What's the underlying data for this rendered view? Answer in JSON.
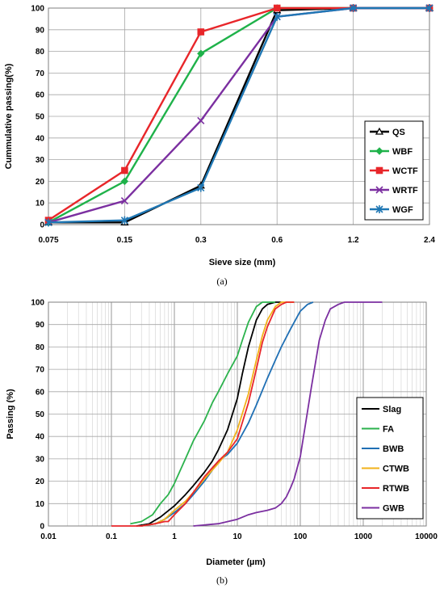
{
  "chart_data": [
    {
      "type": "line",
      "caption": "(a)",
      "xlabel": "Sieve size (mm)",
      "ylabel": "Cummulative passing(%)",
      "x_scale": "ordinal",
      "categories": [
        "0.075",
        "0.15",
        "0.3",
        "0.6",
        "1.2",
        "2.4"
      ],
      "ylim": [
        0,
        100
      ],
      "yticks": [
        "0",
        "10",
        "20",
        "30",
        "40",
        "50",
        "60",
        "70",
        "80",
        "90",
        "100"
      ],
      "grid": true,
      "legend_position": "bottom-right",
      "series": [
        {
          "name": "QS",
          "color": "#000000",
          "marker": "triangle",
          "values": [
            1,
            1,
            18,
            99,
            100,
            100
          ]
        },
        {
          "name": "WBF",
          "color": "#1fb24a",
          "marker": "diamond",
          "values": [
            1,
            20,
            79,
            100,
            100,
            100
          ]
        },
        {
          "name": "WCTF",
          "color": "#e8262a",
          "marker": "square",
          "values": [
            2,
            25,
            89,
            100,
            100,
            100
          ]
        },
        {
          "name": "WRTF",
          "color": "#7b2fa0",
          "marker": "x",
          "values": [
            1,
            11,
            48,
            96,
            100,
            100
          ]
        },
        {
          "name": "WGF",
          "color": "#1f77b4",
          "marker": "star",
          "values": [
            1,
            2,
            17,
            96,
            100,
            100
          ]
        }
      ]
    },
    {
      "type": "line",
      "caption": "(b)",
      "xlabel": "Diameter (µm)",
      "ylabel": "Passing (%)",
      "x_scale": "log",
      "xlim": [
        0.01,
        10000
      ],
      "xticks": [
        "0.01",
        "0.1",
        "1",
        "10",
        "100",
        "1000",
        "10000"
      ],
      "ylim": [
        0,
        100
      ],
      "yticks": [
        "0",
        "10",
        "20",
        "30",
        "40",
        "50",
        "60",
        "70",
        "80",
        "90",
        "100"
      ],
      "grid": true,
      "legend_position": "bottom-right",
      "series": [
        {
          "name": "Slag",
          "color": "#000000",
          "x": [
            0.25,
            0.4,
            0.6,
            1,
            1.5,
            2,
            3,
            4,
            5,
            7,
            10,
            12,
            15,
            20,
            25,
            30,
            40,
            50
          ],
          "y": [
            0,
            1,
            4,
            9,
            14,
            18,
            24,
            29,
            34,
            43,
            57,
            68,
            80,
            92,
            97,
            99,
            100,
            100
          ]
        },
        {
          "name": "FA",
          "color": "#2bb24c",
          "x": [
            0.2,
            0.3,
            0.45,
            0.6,
            0.8,
            1,
            1.5,
            2,
            3,
            4,
            5,
            7,
            10,
            12,
            15,
            20,
            25,
            30,
            40
          ],
          "y": [
            1,
            2,
            5,
            10,
            14,
            19,
            30,
            38,
            47,
            55,
            60,
            68,
            76,
            83,
            91,
            98,
            100,
            100,
            100
          ]
        },
        {
          "name": "BWB",
          "color": "#1f6fb4",
          "x": [
            0.3,
            0.5,
            0.7,
            1,
            1.5,
            2,
            3,
            4,
            5,
            7,
            10,
            15,
            20,
            30,
            40,
            50,
            70,
            100,
            130,
            160
          ],
          "y": [
            0,
            1,
            3,
            6,
            10,
            14,
            20,
            25,
            29,
            32,
            37,
            46,
            54,
            66,
            74,
            80,
            88,
            96,
            99,
            100
          ]
        },
        {
          "name": "CTWB",
          "color": "#f2b21a",
          "x": [
            0.3,
            0.5,
            0.7,
            1,
            1.5,
            2,
            3,
            4,
            5,
            7,
            10,
            15,
            20,
            25,
            30,
            40,
            50,
            60,
            80
          ],
          "y": [
            0,
            1,
            3,
            7,
            11,
            15,
            21,
            25,
            28,
            33,
            43,
            59,
            74,
            85,
            92,
            98,
            100,
            100,
            100
          ]
        },
        {
          "name": "RTWB",
          "color": "#e8262a",
          "x": [
            0.1,
            0.3,
            0.5,
            0.7,
            0.8,
            1,
            1.5,
            2,
            3,
            4,
            5,
            7,
            10,
            15,
            20,
            25,
            30,
            40,
            50,
            60,
            80
          ],
          "y": [
            0,
            0,
            1,
            2,
            2,
            5,
            10,
            15,
            22,
            26,
            29,
            33,
            39,
            55,
            70,
            82,
            89,
            97,
            99,
            100,
            100
          ]
        },
        {
          "name": "GWB",
          "color": "#7b2fa0",
          "x": [
            2,
            5,
            10,
            15,
            20,
            30,
            40,
            50,
            60,
            70,
            80,
            100,
            120,
            150,
            200,
            250,
            300,
            400,
            500,
            600,
            2000
          ],
          "y": [
            0,
            1,
            3,
            5,
            6,
            7,
            8,
            10,
            13,
            17,
            21,
            31,
            45,
            62,
            83,
            92,
            97,
            99,
            100,
            100,
            100
          ]
        }
      ]
    }
  ]
}
